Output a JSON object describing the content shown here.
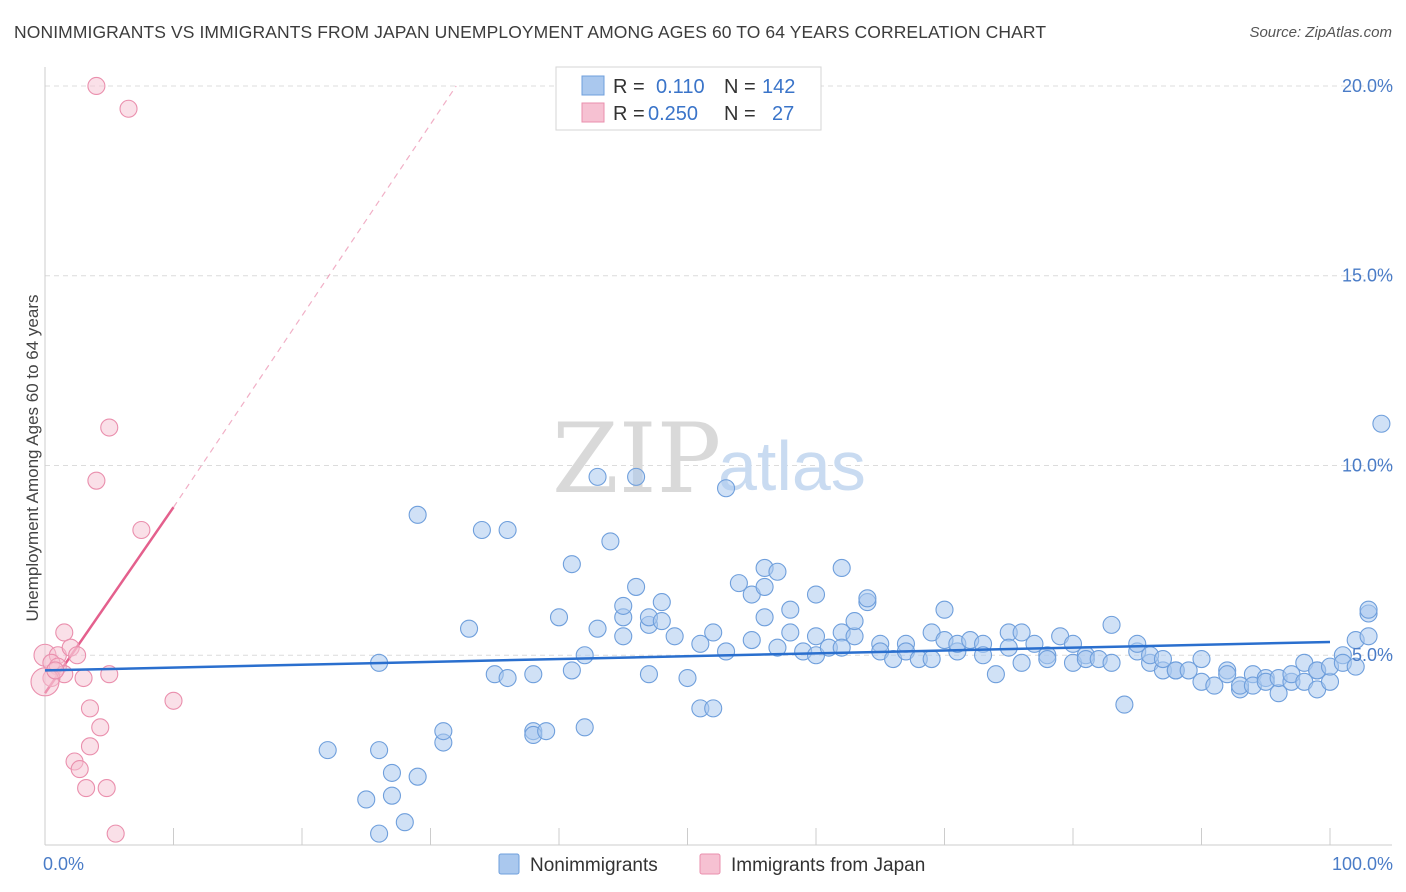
{
  "header": {
    "title": "NONIMMIGRANTS VS IMMIGRANTS FROM JAPAN UNEMPLOYMENT AMONG AGES 60 TO 64 YEARS CORRELATION CHART",
    "source": "Source: ZipAtlas.com"
  },
  "watermark": {
    "zip": "ZIP",
    "atlas": "atlas"
  },
  "colors": {
    "blue_fill": "#aac8ee",
    "blue_stroke": "#6f9fdc",
    "blue_line": "#2a6fce",
    "pink_fill": "#f6c1d2",
    "pink_stroke": "#ea8fad",
    "pink_line": "#e4608d",
    "grid": "#dcdcdc",
    "tick_text": "#4a7cc7"
  },
  "chart_data": {
    "type": "scatter",
    "title": "NONIMMIGRANTS VS IMMIGRANTS FROM JAPAN UNEMPLOYMENT AMONG AGES 60 TO 64 YEARS CORRELATION CHART",
    "xlabel": "",
    "ylabel": "Unemployment Among Ages 60 to 64 years",
    "xlim": [
      0,
      100
    ],
    "ylim": [
      0,
      20.5
    ],
    "x_tick_labels": [
      "0.0%",
      "100.0%"
    ],
    "y_ticks": [
      5,
      10,
      15,
      20
    ],
    "y_tick_labels": [
      "5.0%",
      "10.0%",
      "15.0%",
      "20.0%"
    ],
    "legend": [
      {
        "r_label": "R =",
        "r_value": "0.110",
        "n_label": "N =",
        "n_value": "142"
      },
      {
        "r_label": "R =",
        "r_value": "0.250",
        "n_label": "N =",
        "n_value": "27"
      }
    ],
    "series": [
      {
        "name": "Nonimmigrants",
        "trend": {
          "x": [
            0,
            100
          ],
          "y": [
            4.6,
            5.35
          ]
        },
        "points": [
          [
            26,
            0.3
          ],
          [
            28,
            0.6
          ],
          [
            25,
            1.2
          ],
          [
            27,
            1.3
          ],
          [
            22,
            2.5
          ],
          [
            26,
            2.5
          ],
          [
            27,
            1.9
          ],
          [
            29,
            1.8
          ],
          [
            31,
            2.7
          ],
          [
            31,
            3.0
          ],
          [
            29,
            8.7
          ],
          [
            26,
            4.8
          ],
          [
            33,
            5.7
          ],
          [
            35,
            4.5
          ],
          [
            34,
            8.3
          ],
          [
            36,
            8.3
          ],
          [
            36,
            4.4
          ],
          [
            38,
            3.0
          ],
          [
            38,
            2.9
          ],
          [
            39,
            3.0
          ],
          [
            38,
            4.5
          ],
          [
            40,
            6.0
          ],
          [
            41,
            4.6
          ],
          [
            41,
            7.4
          ],
          [
            42,
            3.1
          ],
          [
            42,
            5.0
          ],
          [
            43,
            5.7
          ],
          [
            44,
            8.0
          ],
          [
            43,
            9.7
          ],
          [
            45,
            6.0
          ],
          [
            45,
            5.5
          ],
          [
            45,
            6.3
          ],
          [
            46,
            6.8
          ],
          [
            47,
            4.5
          ],
          [
            47,
            5.8
          ],
          [
            47,
            6.0
          ],
          [
            48,
            6.4
          ],
          [
            48,
            5.9
          ],
          [
            49,
            5.5
          ],
          [
            50,
            4.4
          ],
          [
            51,
            5.3
          ],
          [
            51,
            3.6
          ],
          [
            52,
            5.6
          ],
          [
            52,
            3.6
          ],
          [
            53,
            5.1
          ],
          [
            54,
            6.9
          ],
          [
            55,
            5.4
          ],
          [
            55,
            6.6
          ],
          [
            56,
            6.8
          ],
          [
            56,
            7.3
          ],
          [
            56,
            6.0
          ],
          [
            57,
            7.2
          ],
          [
            57,
            5.2
          ],
          [
            58,
            6.2
          ],
          [
            58,
            5.6
          ],
          [
            59,
            5.1
          ],
          [
            60,
            5.0
          ],
          [
            60,
            5.5
          ],
          [
            60,
            6.6
          ],
          [
            61,
            5.2
          ],
          [
            62,
            5.6
          ],
          [
            62,
            7.3
          ],
          [
            62,
            5.2
          ],
          [
            63,
            5.5
          ],
          [
            63,
            5.9
          ],
          [
            64,
            6.4
          ],
          [
            64,
            6.5
          ],
          [
            65,
            5.3
          ],
          [
            65,
            5.1
          ],
          [
            66,
            4.9
          ],
          [
            67,
            5.3
          ],
          [
            67,
            5.1
          ],
          [
            68,
            4.9
          ],
          [
            69,
            5.6
          ],
          [
            69,
            4.9
          ],
          [
            70,
            6.2
          ],
          [
            70,
            5.4
          ],
          [
            71,
            5.1
          ],
          [
            71,
            5.3
          ],
          [
            72,
            5.4
          ],
          [
            73,
            5.3
          ],
          [
            73,
            5.0
          ],
          [
            74,
            4.5
          ],
          [
            75,
            5.6
          ],
          [
            75,
            5.2
          ],
          [
            76,
            5.6
          ],
          [
            77,
            5.3
          ],
          [
            76,
            4.8
          ],
          [
            78,
            5.0
          ],
          [
            78,
            4.9
          ],
          [
            79,
            5.5
          ],
          [
            80,
            4.8
          ],
          [
            80,
            5.3
          ],
          [
            81,
            5.0
          ],
          [
            81,
            4.9
          ],
          [
            82,
            4.9
          ],
          [
            83,
            5.8
          ],
          [
            83,
            4.8
          ],
          [
            84,
            3.7
          ],
          [
            85,
            5.1
          ],
          [
            85,
            5.3
          ],
          [
            86,
            4.8
          ],
          [
            86,
            5.0
          ],
          [
            87,
            4.6
          ],
          [
            87,
            4.9
          ],
          [
            88,
            4.6
          ],
          [
            88,
            4.6
          ],
          [
            89,
            4.6
          ],
          [
            90,
            4.3
          ],
          [
            90,
            4.9
          ],
          [
            91,
            4.2
          ],
          [
            92,
            4.6
          ],
          [
            92,
            4.5
          ],
          [
            93,
            4.1
          ],
          [
            93,
            4.2
          ],
          [
            94,
            4.5
          ],
          [
            94,
            4.2
          ],
          [
            95,
            4.4
          ],
          [
            95,
            4.3
          ],
          [
            96,
            4.0
          ],
          [
            96,
            4.4
          ],
          [
            97,
            4.3
          ],
          [
            97,
            4.5
          ],
          [
            98,
            4.3
          ],
          [
            98,
            4.8
          ],
          [
            99,
            4.6
          ],
          [
            99,
            4.1
          ],
          [
            100,
            4.3
          ],
          [
            99,
            4.6
          ],
          [
            100,
            4.7
          ],
          [
            101,
            5.0
          ],
          [
            101,
            4.8
          ],
          [
            102,
            4.7
          ],
          [
            102,
            5.4
          ],
          [
            103,
            6.1
          ],
          [
            103,
            5.5
          ],
          [
            103,
            6.2
          ],
          [
            104,
            11.1
          ],
          [
            53,
            9.4
          ],
          [
            46,
            9.7
          ]
        ]
      },
      {
        "name": "Immigrants from Japan",
        "trend": {
          "x": [
            0,
            10
          ],
          "y": [
            4.0,
            8.9
          ]
        },
        "trend_extended": {
          "x": [
            10,
            32
          ],
          "y": [
            8.9,
            20.0
          ]
        },
        "points": [
          [
            4,
            20.0
          ],
          [
            6.5,
            19.4
          ],
          [
            5,
            11.0
          ],
          [
            4,
            9.6
          ],
          [
            7.5,
            8.3
          ],
          [
            1.5,
            5.6
          ],
          [
            0,
            5.0
          ],
          [
            1,
            5.0
          ],
          [
            2,
            5.2
          ],
          [
            2.5,
            5.0
          ],
          [
            0.5,
            4.8
          ],
          [
            1,
            4.7
          ],
          [
            1.5,
            4.5
          ],
          [
            0.5,
            4.4
          ],
          [
            0,
            4.3
          ],
          [
            3,
            4.4
          ],
          [
            5,
            4.5
          ],
          [
            10,
            3.8
          ],
          [
            3.5,
            3.6
          ],
          [
            4.3,
            3.1
          ],
          [
            3.5,
            2.6
          ],
          [
            2.3,
            2.2
          ],
          [
            2.7,
            2.0
          ],
          [
            3.2,
            1.5
          ],
          [
            4.8,
            1.5
          ],
          [
            5.5,
            0.3
          ],
          [
            0.8,
            4.6
          ]
        ]
      }
    ]
  },
  "bottom_legend": {
    "nonimmigrants": "Nonimmigrants",
    "immigrants": "Immigrants from Japan"
  }
}
